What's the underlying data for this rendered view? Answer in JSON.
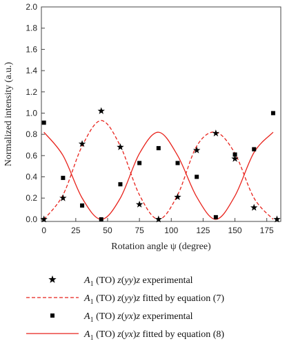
{
  "chart_data": {
    "type": "scatter",
    "title": "",
    "xlabel": "Rotation angle ψ (degree)",
    "ylabel": "Normalized intensity (a.u.)",
    "xlim": [
      -2,
      186
    ],
    "ylim": [
      -0.02,
      2.0
    ],
    "xticks": [
      0,
      25,
      50,
      75,
      100,
      125,
      150,
      175
    ],
    "xtick_labels": [
      "0",
      "25",
      "50",
      "75",
      "100",
      "125",
      "150",
      "175"
    ],
    "yticks": [
      0.0,
      0.2,
      0.4,
      0.6,
      0.8,
      1.0,
      1.2,
      1.4,
      1.6,
      1.8,
      2.0
    ],
    "ytick_labels": [
      "0.0",
      "0.2",
      "0.4",
      "0.6",
      "0.8",
      "1.0",
      "1.2",
      "1.4",
      "1.6",
      "1.8",
      "2.0"
    ],
    "grid": false,
    "legend_position": "below plot",
    "series": [
      {
        "legend_parts": [
          "A",
          "1",
          " (TO) ",
          "z",
          "(",
          "yy",
          ")",
          "z",
          " experimental"
        ],
        "kind": "scatter",
        "marker": "star",
        "color": "#000000",
        "x": [
          0,
          15,
          30,
          45,
          60,
          75,
          90,
          105,
          120,
          135,
          150,
          165,
          183
        ],
        "y": [
          0.0,
          0.2,
          0.71,
          1.02,
          0.68,
          0.14,
          0.0,
          0.21,
          0.65,
          0.81,
          0.57,
          0.11,
          0.0
        ]
      },
      {
        "legend_parts": [
          "A",
          "1",
          " (TO) ",
          "z",
          "(",
          "yy",
          ")",
          "z",
          " fitted by equation (7)"
        ],
        "kind": "line",
        "dash": "dashed",
        "color": "#e8221b",
        "x": [
          0,
          15,
          30,
          45,
          60,
          75,
          90,
          105,
          120,
          135,
          150,
          165,
          180
        ],
        "y": [
          0.0,
          0.23,
          0.69,
          0.93,
          0.69,
          0.23,
          0.0,
          0.23,
          0.69,
          0.82,
          0.62,
          0.2,
          0.0
        ]
      },
      {
        "legend_parts": [
          "A",
          "1",
          " (TO) ",
          "z",
          "(",
          "yx",
          ")",
          "z",
          " experimental"
        ],
        "kind": "scatter",
        "marker": "square",
        "color": "#000000",
        "x": [
          0,
          15,
          30,
          45,
          60,
          75,
          90,
          105,
          120,
          135,
          150,
          165,
          180
        ],
        "y": [
          0.91,
          0.39,
          0.13,
          0.0,
          0.33,
          0.53,
          0.67,
          0.53,
          0.4,
          0.02,
          0.61,
          0.66,
          1.0
        ]
      },
      {
        "legend_parts": [
          "A",
          "1",
          " (TO) ",
          "z",
          "(",
          "yx",
          ")",
          "z",
          " fitted by equation (8)"
        ],
        "kind": "line",
        "dash": "solid",
        "color": "#e8221b",
        "x": [
          0,
          15,
          30,
          45,
          60,
          75,
          90,
          105,
          120,
          135,
          150,
          165,
          180
        ],
        "y": [
          0.82,
          0.6,
          0.2,
          0.0,
          0.2,
          0.62,
          0.82,
          0.6,
          0.21,
          0.0,
          0.22,
          0.63,
          0.82
        ]
      }
    ]
  }
}
